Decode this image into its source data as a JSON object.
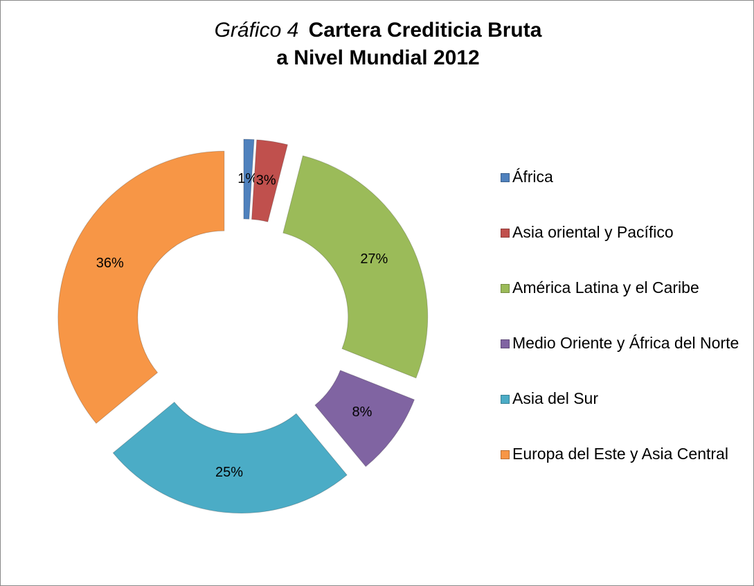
{
  "chart_data": {
    "type": "doughnut",
    "title": {
      "italic": "Gráfico 4",
      "bold": [
        "Cartera Crediticia Bruta",
        "a Nivel Mundial 2012"
      ]
    },
    "categories": [
      "África",
      "Asia oriental y Pacífico",
      "América Latina y el Caribe",
      "Medio Oriente y África del Norte",
      "Asia del Sur",
      "Europa del Este y Asia Central"
    ],
    "values": [
      1,
      3,
      27,
      8,
      25,
      36
    ],
    "value_labels": [
      "1%",
      "3%",
      "27%",
      "8%",
      "25%",
      "36%"
    ],
    "colors": [
      "#4f81bd",
      "#c0504d",
      "#9bbb59",
      "#8064a2",
      "#4bacc6",
      "#f79646"
    ],
    "legend": "right"
  }
}
